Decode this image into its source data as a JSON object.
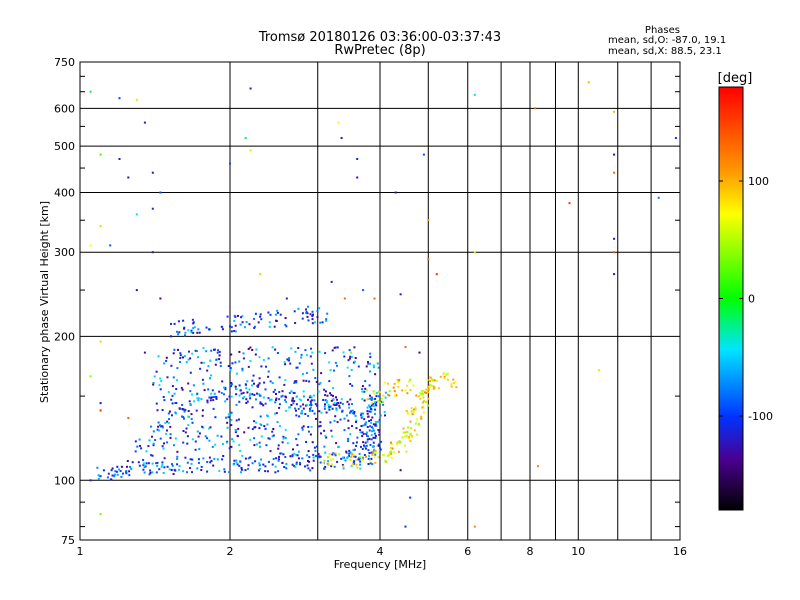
{
  "chart_data": {
    "type": "scatter",
    "title": "Tromsø 20180126 03:36:00-03:37:43",
    "subtitle": "RwPretec (8p)",
    "xlabel": "Frequency [MHz]",
    "ylabel": "Stationary phase Virtual Height [km]",
    "xscale": "log",
    "yscale": "log",
    "xlim": [
      1,
      16
    ],
    "ylim": [
      75,
      750
    ],
    "x_ticks": [
      1,
      2,
      4,
      6,
      8,
      10,
      16
    ],
    "x_tick_labels": [
      "1",
      "2",
      "4",
      "6",
      "8",
      "10",
      "16"
    ],
    "y_ticks": [
      75,
      100,
      200,
      300,
      400,
      500,
      600,
      750
    ],
    "y_tick_labels": [
      "75",
      "100",
      "200",
      "300",
      "400",
      "500",
      "600",
      "750"
    ],
    "grid": true,
    "phases_box": {
      "title": "Phases",
      "line1": "mean, sd,O: -87.0, 19.1",
      "line2": "mean, sd,X:  88.5, 23.1"
    },
    "colorbar": {
      "label": "[deg]",
      "min": -180,
      "max": 180,
      "ticks": [
        100,
        0,
        -100
      ],
      "tick_labels": [
        "100",
        "0",
        "-100"
      ]
    },
    "o_trace": [
      [
        1.12,
        103
      ],
      [
        1.2,
        105
      ],
      [
        1.3,
        106
      ],
      [
        1.4,
        107
      ],
      [
        1.5,
        107
      ],
      [
        1.6,
        108
      ],
      [
        1.8,
        108
      ],
      [
        2.0,
        108
      ],
      [
        2.2,
        108
      ],
      [
        2.4,
        108
      ],
      [
        2.6,
        109
      ],
      [
        2.8,
        109
      ],
      [
        3.0,
        109
      ],
      [
        3.3,
        110
      ],
      [
        3.5,
        110
      ],
      [
        3.7,
        112
      ],
      [
        3.8,
        115
      ],
      [
        3.85,
        120
      ],
      [
        3.9,
        130
      ],
      [
        3.95,
        140
      ],
      [
        4.0,
        147
      ],
      [
        1.35,
        117
      ],
      [
        1.45,
        128
      ],
      [
        1.6,
        140
      ],
      [
        1.8,
        150
      ],
      [
        2.0,
        153
      ],
      [
        2.2,
        153
      ],
      [
        2.4,
        150
      ],
      [
        2.6,
        147
      ],
      [
        2.8,
        145
      ],
      [
        3.0,
        145
      ],
      [
        3.2,
        145
      ],
      [
        3.4,
        140
      ],
      [
        3.6,
        135
      ],
      [
        3.8,
        128
      ],
      [
        1.6,
        208
      ],
      [
        1.75,
        210
      ],
      [
        2.0,
        213
      ],
      [
        2.2,
        215
      ],
      [
        2.5,
        218
      ],
      [
        2.8,
        220
      ],
      [
        3.0,
        222
      ]
    ],
    "x_trace": [
      [
        3.2,
        110
      ],
      [
        3.5,
        110
      ],
      [
        3.8,
        112
      ],
      [
        4.1,
        113
      ],
      [
        4.35,
        117
      ],
      [
        4.5,
        122
      ],
      [
        4.6,
        128
      ],
      [
        4.7,
        135
      ],
      [
        4.8,
        143
      ],
      [
        4.9,
        150
      ],
      [
        5.0,
        157
      ],
      [
        5.2,
        160
      ],
      [
        5.5,
        162
      ],
      [
        3.9,
        150
      ],
      [
        4.2,
        155
      ],
      [
        4.5,
        157
      ]
    ],
    "scattered_points": [
      [
        1.05,
        650,
        -20
      ],
      [
        1.2,
        630,
        -95
      ],
      [
        1.3,
        625,
        60
      ],
      [
        1.35,
        560,
        -120
      ],
      [
        2.2,
        660,
        -130
      ],
      [
        2.15,
        520,
        -20
      ],
      [
        2.2,
        490,
        60
      ],
      [
        2.0,
        460,
        -90
      ],
      [
        3.3,
        560,
        80
      ],
      [
        3.35,
        520,
        -130
      ],
      [
        3.6,
        470,
        -110
      ],
      [
        3.6,
        430,
        -140
      ],
      [
        4.3,
        400,
        -130
      ],
      [
        4.9,
        480,
        -90
      ],
      [
        5.0,
        350,
        120
      ],
      [
        1.1,
        480,
        20
      ],
      [
        1.2,
        470,
        -130
      ],
      [
        1.25,
        430,
        -130
      ],
      [
        1.4,
        440,
        -130
      ],
      [
        1.45,
        400,
        -90
      ],
      [
        1.4,
        370,
        -110
      ],
      [
        1.3,
        360,
        -40
      ],
      [
        1.1,
        340,
        100
      ],
      [
        1.05,
        310,
        80
      ],
      [
        1.15,
        310,
        -90
      ],
      [
        1.4,
        300,
        -130
      ],
      [
        1.3,
        250,
        -130
      ],
      [
        1.45,
        240,
        -140
      ],
      [
        1.1,
        195,
        100
      ],
      [
        1.35,
        185,
        -130
      ],
      [
        1.1,
        145,
        -130
      ],
      [
        1.05,
        165,
        40
      ],
      [
        1.1,
        140,
        160
      ],
      [
        1.25,
        135,
        140
      ],
      [
        1.1,
        85,
        40
      ],
      [
        1.05,
        100,
        -130
      ],
      [
        6.2,
        640,
        -50
      ],
      [
        6.2,
        300,
        60
      ],
      [
        6.2,
        80,
        130
      ],
      [
        8.2,
        600,
        140
      ],
      [
        9.6,
        380,
        160
      ],
      [
        10.5,
        680,
        110
      ],
      [
        11.8,
        590,
        110
      ],
      [
        11.8,
        480,
        -130
      ],
      [
        11.8,
        440,
        140
      ],
      [
        11.8,
        320,
        -130
      ],
      [
        11.8,
        300,
        150
      ],
      [
        11.8,
        270,
        -130
      ],
      [
        14.5,
        390,
        -80
      ],
      [
        15.7,
        520,
        -100
      ],
      [
        11.0,
        170,
        60
      ],
      [
        8.3,
        107,
        130
      ],
      [
        4.5,
        80,
        -100
      ],
      [
        4.6,
        92,
        -100
      ],
      [
        4.4,
        105,
        -150
      ],
      [
        2.3,
        270,
        100
      ],
      [
        2.0,
        210,
        -110
      ],
      [
        2.6,
        240,
        -120
      ],
      [
        3.2,
        260,
        -120
      ],
      [
        3.4,
        240,
        140
      ],
      [
        3.7,
        250,
        -90
      ],
      [
        3.9,
        240,
        140
      ],
      [
        4.4,
        245,
        -120
      ],
      [
        5.0,
        290,
        140
      ],
      [
        5.2,
        270,
        160
      ],
      [
        3.5,
        185,
        40
      ],
      [
        4.5,
        190,
        140
      ],
      [
        4.8,
        185,
        -150
      ]
    ]
  }
}
